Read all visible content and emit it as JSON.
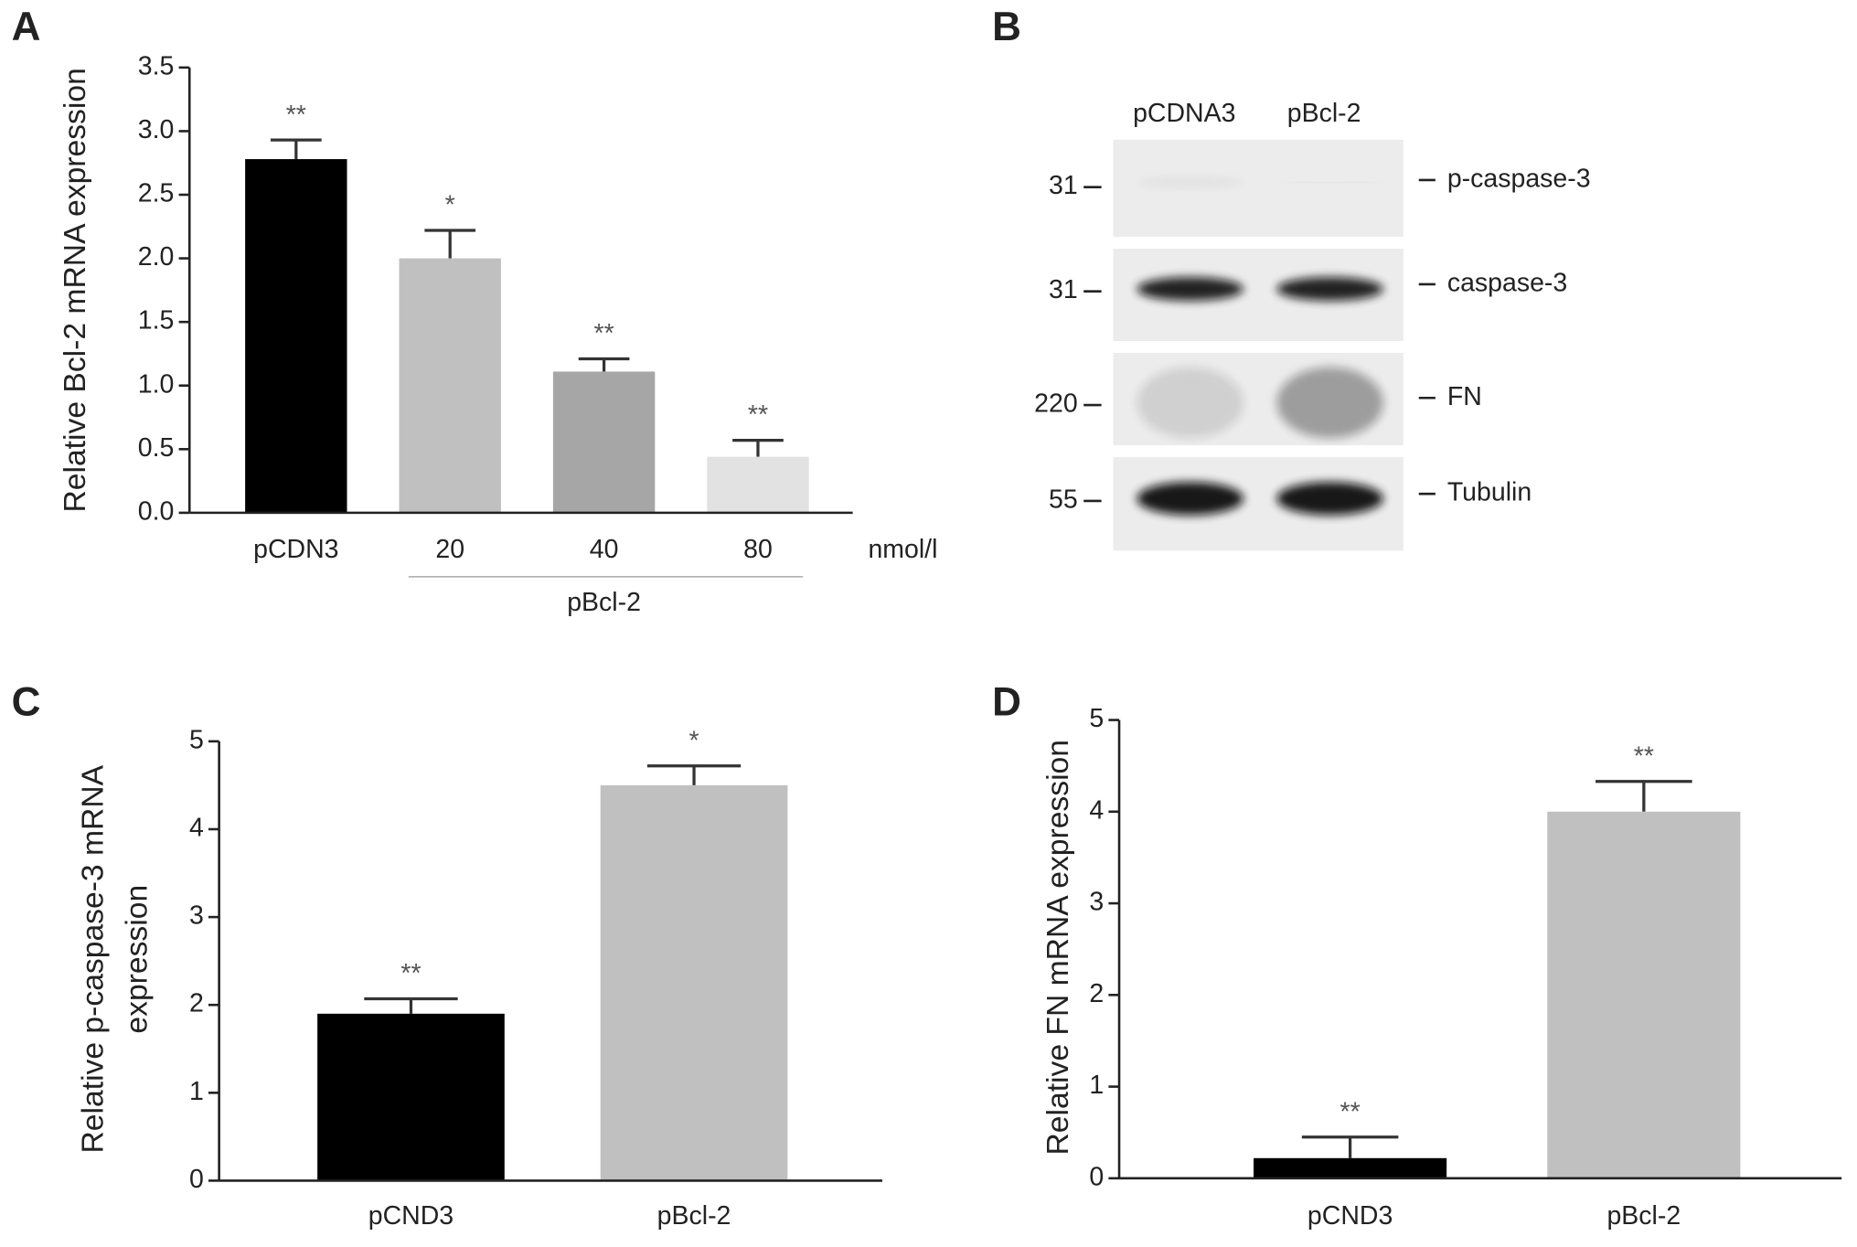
{
  "chart_data": [
    {
      "type": "bar",
      "panel": "A",
      "ylabel": [
        "Relative Bcl-2 mRNA expression"
      ],
      "categories": [
        "pCDN3",
        "20",
        "40",
        "80"
      ],
      "unit_label": "nmol/l",
      "group_label": "pBcl-2",
      "values": [
        2.78,
        2.0,
        1.11,
        0.44
      ],
      "errors": [
        0.15,
        0.22,
        0.1,
        0.13
      ],
      "annotations": [
        "**",
        "*",
        "**",
        "**"
      ],
      "colors": [
        "#000000",
        "#c0c0c0",
        "#a6a6a6",
        "#e2e2e2"
      ],
      "ylim": [
        0,
        3.5
      ],
      "yticks": [
        {
          "value": 0,
          "label": "0.0"
        },
        0.5,
        {
          "value": 1,
          "label": "1.0"
        },
        1.5,
        {
          "value": 2,
          "label": "2.0"
        },
        2.5,
        {
          "value": 3,
          "label": "3.0"
        },
        3.5
      ]
    },
    {
      "type": "bar",
      "panel": "C",
      "ylabel": [
        "Relative p-caspase-3 mRNA",
        "expression"
      ],
      "categories": [
        "pCND3",
        "pBcl-2"
      ],
      "values": [
        1.9,
        4.5
      ],
      "errors": [
        0.17,
        0.22
      ],
      "annotations": [
        "**",
        "*"
      ],
      "colors": [
        "#000000",
        "#c0c0c0"
      ],
      "ylim": [
        0,
        5
      ],
      "yticks": [
        0,
        1,
        2,
        3,
        4,
        5
      ]
    },
    {
      "type": "bar",
      "panel": "D",
      "ylabel": [
        "Relative FN mRNA expression"
      ],
      "categories": [
        "pCND3",
        "pBcl-2"
      ],
      "values": [
        0.22,
        4.0
      ],
      "errors": [
        0.23,
        0.33
      ],
      "annotations": [
        "**",
        "**"
      ],
      "colors": [
        "#000000",
        "#c0c0c0"
      ],
      "ylim": [
        0,
        5
      ],
      "yticks": [
        0,
        1,
        2,
        3,
        4,
        5
      ]
    }
  ],
  "blot": {
    "panel": "B",
    "lanes": [
      "pCDNA3",
      "pBcl-2"
    ],
    "rows": [
      {
        "marker": "31",
        "label": "p-caspase-3"
      },
      {
        "marker": "31",
        "label": "caspase-3"
      },
      {
        "marker": "220",
        "label": "FN"
      },
      {
        "marker": "55",
        "label": "Tubulin"
      }
    ]
  }
}
